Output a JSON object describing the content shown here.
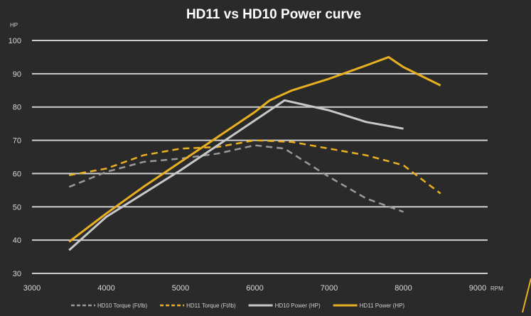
{
  "chart_data": {
    "type": "line",
    "title": "HD11 vs HD10 Power curve",
    "xlabel": "RPM",
    "ylabel": "HP",
    "xlim": [
      3000,
      9000
    ],
    "ylim": [
      30,
      100
    ],
    "xticks": [
      3000,
      4000,
      5000,
      6000,
      7000,
      8000,
      9000
    ],
    "yticks": [
      30,
      40,
      50,
      60,
      70,
      80,
      90,
      100
    ],
    "grid": true,
    "legend_position": "bottom",
    "series": [
      {
        "name": "HD10 Torque (Ft/lb)",
        "color": "#9a9a9a",
        "dash": true,
        "x": [
          3500,
          4000,
          4500,
          5000,
          5500,
          6000,
          6400,
          7000,
          7500,
          8000
        ],
        "y": [
          56,
          60.5,
          63.5,
          64.5,
          66,
          68.5,
          67.5,
          59,
          52.5,
          48.5
        ]
      },
      {
        "name": "HD11 Torque (Ft/lb)",
        "color": "#e8b021",
        "dash": true,
        "x": [
          3500,
          4000,
          4500,
          5000,
          5500,
          6000,
          6500,
          7000,
          7500,
          8000,
          8500
        ],
        "y": [
          59.5,
          61.5,
          65.5,
          67.5,
          68,
          70,
          69.5,
          67.5,
          65.5,
          62.5,
          54
        ]
      },
      {
        "name": "HD10 Power (HP)",
        "color": "#c8c8c8",
        "dash": false,
        "x": [
          3500,
          4000,
          4500,
          5000,
          5500,
          6000,
          6400,
          7000,
          7500,
          8000
        ],
        "y": [
          37,
          47,
          54,
          61,
          68.5,
          76,
          82,
          79,
          75.5,
          73.5
        ]
      },
      {
        "name": "HD11 Power (HP)",
        "color": "#e8b021",
        "dash": false,
        "x": [
          3500,
          4000,
          4500,
          5000,
          5500,
          6000,
          6200,
          6500,
          7000,
          7500,
          7800,
          8000,
          8500
        ],
        "y": [
          39.5,
          48,
          56,
          63.5,
          71,
          78.5,
          82,
          85,
          88.5,
          92.5,
          95,
          92,
          86.5
        ]
      }
    ]
  }
}
